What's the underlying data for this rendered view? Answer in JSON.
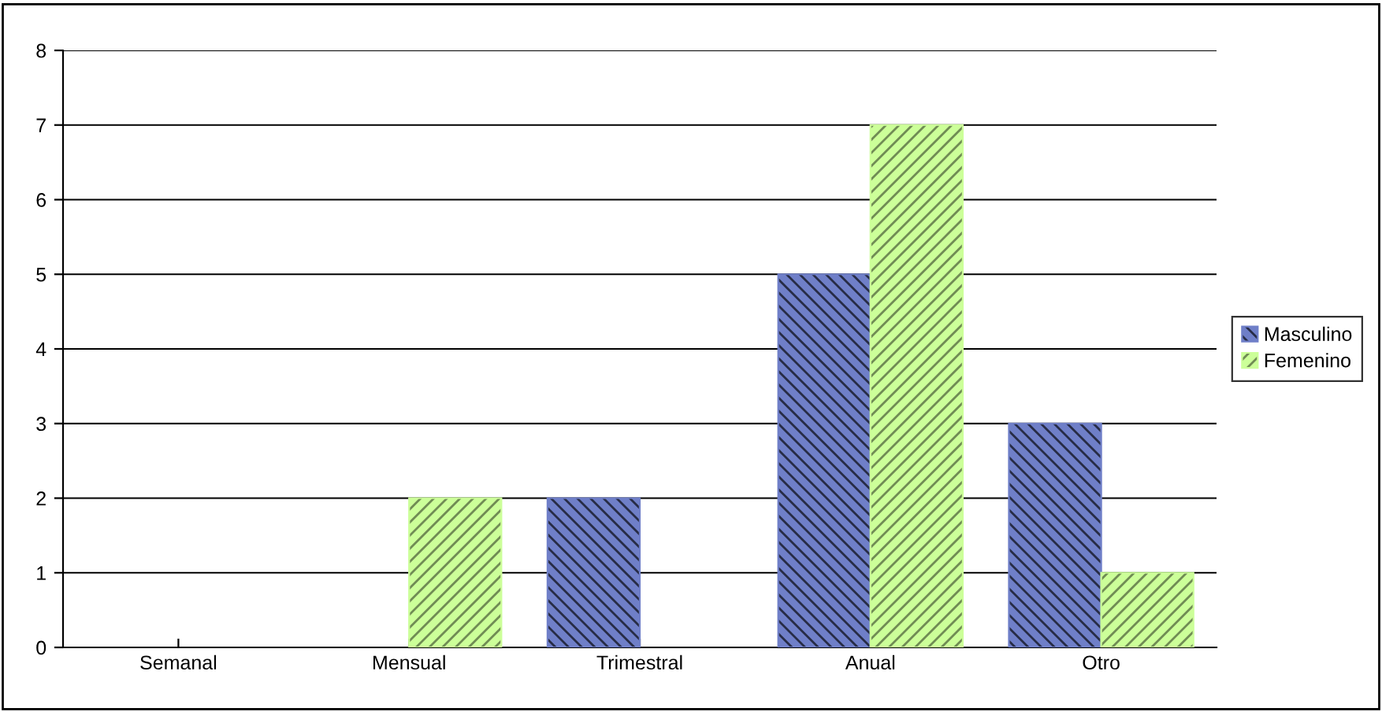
{
  "chart_data": {
    "type": "bar",
    "categories": [
      "Semanal",
      "Mensual",
      "Trimestral",
      "Anual",
      "Otro"
    ],
    "series": [
      {
        "name": "Masculino",
        "color": "#6f7fc8",
        "values": [
          0,
          0,
          2,
          5,
          3
        ]
      },
      {
        "name": "Femenino",
        "color": "#ccff99",
        "values": [
          0,
          2,
          0,
          7,
          1
        ]
      }
    ],
    "ylim": [
      0,
      8
    ],
    "yticks": [
      0,
      1,
      2,
      3,
      4,
      5,
      6,
      7,
      8
    ],
    "grid": "y",
    "legend": "right"
  }
}
